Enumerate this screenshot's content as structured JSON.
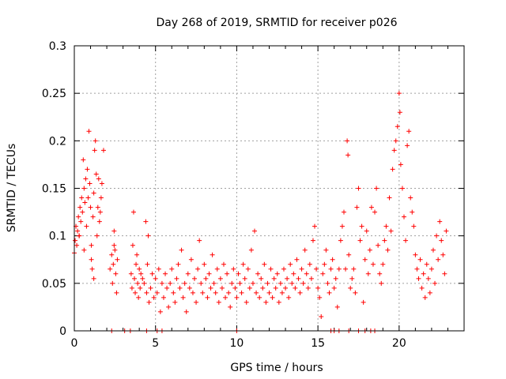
{
  "chart_data": {
    "type": "scatter",
    "title": "Day 268 of 2019, SRMTID for receiver p026",
    "xlabel": "GPS time / hours",
    "ylabel": "SRMTID / TECUs",
    "xlim": [
      0,
      24
    ],
    "ylim": [
      0,
      0.3
    ],
    "xticks": [
      0,
      5,
      10,
      15,
      20
    ],
    "xtick_labels": [
      "0",
      "5",
      "10",
      "15",
      "20"
    ],
    "yticks": [
      0,
      0.05,
      0.1,
      0.15,
      0.2,
      0.25,
      0.3
    ],
    "ytick_labels": [
      "0",
      "0.05",
      "0.1",
      "0.15",
      "0.2",
      "0.25",
      "0.3"
    ],
    "grid": true,
    "marker": "plus",
    "series_color": "#ff0000",
    "series": [
      {
        "name": "SRMTID",
        "points": [
          [
            0.0,
            0.082
          ],
          [
            0.05,
            0.095
          ],
          [
            0.1,
            0.11
          ],
          [
            0.15,
            0.09
          ],
          [
            0.2,
            0.105
          ],
          [
            0.25,
            0.12
          ],
          [
            0.3,
            0.1
          ],
          [
            0.35,
            0.13
          ],
          [
            0.4,
            0.115
          ],
          [
            0.45,
            0.14
          ],
          [
            0.5,
            0.125
          ],
          [
            0.55,
            0.18
          ],
          [
            0.6,
            0.15
          ],
          [
            0.65,
            0.135
          ],
          [
            0.7,
            0.16
          ],
          [
            0.75,
            0.11
          ],
          [
            0.8,
            0.17
          ],
          [
            0.85,
            0.14
          ],
          [
            0.9,
            0.21
          ],
          [
            0.95,
            0.155
          ],
          [
            1.0,
            0.13
          ],
          [
            1.05,
            0.09
          ],
          [
            1.1,
            0.065
          ],
          [
            1.15,
            0.12
          ],
          [
            1.2,
            0.145
          ],
          [
            1.25,
            0.19
          ],
          [
            1.3,
            0.2
          ],
          [
            1.35,
            0.165
          ],
          [
            1.4,
            0.1
          ],
          [
            1.45,
            0.13
          ],
          [
            1.5,
            0.16
          ],
          [
            1.55,
            0.115
          ],
          [
            1.6,
            0.125
          ],
          [
            1.65,
            0.14
          ],
          [
            1.7,
            0.155
          ],
          [
            1.8,
            0.19
          ],
          [
            1.05,
            0.075
          ],
          [
            0.6,
            0.085
          ],
          [
            0.3,
            0.1
          ],
          [
            1.2,
            0.055
          ],
          [
            2.2,
            0.065
          ],
          [
            2.3,
            0.08
          ],
          [
            2.35,
            0.05
          ],
          [
            2.4,
            0.07
          ],
          [
            2.45,
            0.105
          ],
          [
            2.5,
            0.085
          ],
          [
            2.55,
            0.06
          ],
          [
            2.6,
            0.04
          ],
          [
            2.65,
            0.075
          ],
          [
            2.45,
            0.09
          ],
          [
            3.5,
            0.06
          ],
          [
            3.55,
            0.045
          ],
          [
            3.6,
            0.09
          ],
          [
            3.65,
            0.125
          ],
          [
            3.7,
            0.055
          ],
          [
            3.75,
            0.04
          ],
          [
            3.8,
            0.07
          ],
          [
            3.85,
            0.08
          ],
          [
            3.9,
            0.05
          ],
          [
            3.95,
            0.035
          ],
          [
            4.0,
            0.065
          ],
          [
            4.05,
            0.045
          ],
          [
            4.1,
            0.06
          ],
          [
            4.2,
            0.055
          ],
          [
            4.3,
            0.05
          ],
          [
            4.4,
            0.115
          ],
          [
            4.45,
            0.04
          ],
          [
            4.5,
            0.07
          ],
          [
            4.55,
            0.1
          ],
          [
            4.6,
            0.03
          ],
          [
            4.7,
            0.045
          ],
          [
            4.8,
            0.06
          ],
          [
            4.9,
            0.035
          ],
          [
            5.0,
            0.055
          ],
          [
            5.1,
            0.04
          ],
          [
            5.2,
            0.065
          ],
          [
            5.3,
            0.02
          ],
          [
            5.4,
            0.05
          ],
          [
            5.5,
            0.035
          ],
          [
            5.6,
            0.06
          ],
          [
            5.7,
            0.045
          ],
          [
            5.8,
            0.025
          ],
          [
            5.9,
            0.05
          ],
          [
            6.0,
            0.065
          ],
          [
            6.1,
            0.04
          ],
          [
            6.2,
            0.03
          ],
          [
            6.3,
            0.055
          ],
          [
            6.4,
            0.07
          ],
          [
            6.5,
            0.045
          ],
          [
            6.6,
            0.085
          ],
          [
            6.7,
            0.035
          ],
          [
            6.8,
            0.05
          ],
          [
            6.9,
            0.02
          ],
          [
            7.0,
            0.06
          ],
          [
            7.1,
            0.045
          ],
          [
            7.2,
            0.075
          ],
          [
            7.3,
            0.04
          ],
          [
            7.4,
            0.055
          ],
          [
            7.5,
            0.03
          ],
          [
            7.6,
            0.065
          ],
          [
            7.7,
            0.095
          ],
          [
            7.8,
            0.05
          ],
          [
            7.9,
            0.04
          ],
          [
            8.0,
            0.07
          ],
          [
            8.1,
            0.055
          ],
          [
            8.2,
            0.035
          ],
          [
            8.3,
            0.06
          ],
          [
            8.4,
            0.045
          ],
          [
            8.5,
            0.08
          ],
          [
            8.6,
            0.05
          ],
          [
            8.7,
            0.04
          ],
          [
            8.8,
            0.065
          ],
          [
            8.9,
            0.03
          ],
          [
            9.0,
            0.055
          ],
          [
            9.1,
            0.045
          ],
          [
            9.2,
            0.07
          ],
          [
            9.3,
            0.035
          ],
          [
            9.4,
            0.06
          ],
          [
            9.5,
            0.04
          ],
          [
            9.6,
            0.025
          ],
          [
            9.7,
            0.05
          ],
          [
            9.8,
            0.065
          ],
          [
            9.9,
            0.045
          ],
          [
            10.0,
            0.035
          ],
          [
            10.1,
            0.06
          ],
          [
            10.2,
            0.05
          ],
          [
            10.3,
            0.04
          ],
          [
            10.4,
            0.07
          ],
          [
            10.5,
            0.055
          ],
          [
            10.6,
            0.03
          ],
          [
            10.7,
            0.065
          ],
          [
            10.8,
            0.045
          ],
          [
            10.9,
            0.085
          ],
          [
            11.0,
            0.05
          ],
          [
            11.1,
            0.105
          ],
          [
            11.2,
            0.04
          ],
          [
            11.3,
            0.06
          ],
          [
            11.4,
            0.035
          ],
          [
            11.5,
            0.055
          ],
          [
            11.6,
            0.045
          ],
          [
            11.7,
            0.07
          ],
          [
            11.8,
            0.03
          ],
          [
            11.9,
            0.05
          ],
          [
            12.0,
            0.04
          ],
          [
            12.1,
            0.065
          ],
          [
            12.2,
            0.035
          ],
          [
            12.3,
            0.055
          ],
          [
            12.4,
            0.045
          ],
          [
            12.5,
            0.06
          ],
          [
            12.6,
            0.03
          ],
          [
            12.7,
            0.05
          ],
          [
            12.8,
            0.04
          ],
          [
            12.9,
            0.065
          ],
          [
            13.0,
            0.045
          ],
          [
            13.1,
            0.055
          ],
          [
            13.2,
            0.035
          ],
          [
            13.3,
            0.07
          ],
          [
            13.4,
            0.05
          ],
          [
            13.5,
            0.06
          ],
          [
            13.6,
            0.045
          ],
          [
            13.7,
            0.075
          ],
          [
            13.8,
            0.055
          ],
          [
            13.9,
            0.04
          ],
          [
            14.0,
            0.065
          ],
          [
            14.1,
            0.05
          ],
          [
            14.2,
            0.085
          ],
          [
            14.3,
            0.06
          ],
          [
            14.4,
            0.045
          ],
          [
            14.5,
            0.07
          ],
          [
            14.6,
            0.055
          ],
          [
            14.7,
            0.095
          ],
          [
            14.8,
            0.11
          ],
          [
            14.9,
            0.065
          ],
          [
            15.0,
            0.045
          ],
          [
            15.1,
            0.035
          ],
          [
            15.2,
            0.015
          ],
          [
            15.3,
            0.06
          ],
          [
            15.4,
            0.07
          ],
          [
            15.5,
            0.085
          ],
          [
            15.6,
            0.05
          ],
          [
            15.7,
            0.04
          ],
          [
            15.8,
            0.065
          ],
          [
            15.9,
            0.075
          ],
          [
            16.0,
            0.045
          ],
          [
            16.1,
            0.055
          ],
          [
            16.2,
            0.025
          ],
          [
            16.3,
            0.065
          ],
          [
            16.4,
            0.095
          ],
          [
            16.5,
            0.11
          ],
          [
            16.6,
            0.125
          ],
          [
            16.7,
            0.065
          ],
          [
            16.8,
            0.2
          ],
          [
            16.85,
            0.185
          ],
          [
            16.9,
            0.08
          ],
          [
            17.0,
            0.045
          ],
          [
            17.1,
            0.055
          ],
          [
            17.2,
            0.065
          ],
          [
            17.3,
            0.04
          ],
          [
            17.4,
            0.13
          ],
          [
            17.5,
            0.15
          ],
          [
            17.6,
            0.095
          ],
          [
            17.7,
            0.11
          ],
          [
            17.8,
            0.03
          ],
          [
            17.9,
            0.075
          ],
          [
            18.0,
            0.105
          ],
          [
            18.1,
            0.06
          ],
          [
            18.2,
            0.085
          ],
          [
            18.3,
            0.13
          ],
          [
            18.4,
            0.07
          ],
          [
            18.5,
            0.125
          ],
          [
            18.6,
            0.15
          ],
          [
            18.7,
            0.09
          ],
          [
            18.8,
            0.06
          ],
          [
            18.9,
            0.05
          ],
          [
            19.0,
            0.07
          ],
          [
            19.1,
            0.095
          ],
          [
            19.2,
            0.11
          ],
          [
            19.3,
            0.085
          ],
          [
            19.4,
            0.14
          ],
          [
            19.5,
            0.105
          ],
          [
            19.6,
            0.17
          ],
          [
            19.7,
            0.19
          ],
          [
            19.8,
            0.2
          ],
          [
            19.9,
            0.215
          ],
          [
            20.0,
            0.25
          ],
          [
            20.05,
            0.23
          ],
          [
            20.1,
            0.175
          ],
          [
            20.2,
            0.15
          ],
          [
            20.3,
            0.12
          ],
          [
            20.4,
            0.095
          ],
          [
            20.5,
            0.195
          ],
          [
            20.6,
            0.21
          ],
          [
            20.7,
            0.14
          ],
          [
            20.8,
            0.125
          ],
          [
            20.9,
            0.11
          ],
          [
            21.0,
            0.08
          ],
          [
            21.1,
            0.065
          ],
          [
            21.2,
            0.055
          ],
          [
            21.3,
            0.075
          ],
          [
            21.4,
            0.045
          ],
          [
            21.5,
            0.06
          ],
          [
            21.6,
            0.035
          ],
          [
            21.7,
            0.07
          ],
          [
            21.8,
            0.055
          ],
          [
            21.9,
            0.04
          ],
          [
            22.0,
            0.065
          ],
          [
            22.1,
            0.085
          ],
          [
            22.2,
            0.05
          ],
          [
            22.3,
            0.1
          ],
          [
            22.4,
            0.075
          ],
          [
            22.5,
            0.115
          ],
          [
            22.6,
            0.095
          ],
          [
            22.7,
            0.08
          ],
          [
            22.8,
            0.06
          ],
          [
            22.9,
            0.105
          ],
          [
            2.3,
            0
          ],
          [
            3.1,
            0
          ],
          [
            3.45,
            0
          ],
          [
            4.45,
            0
          ],
          [
            5.1,
            0
          ],
          [
            5.4,
            0
          ],
          [
            10.0,
            0
          ],
          [
            15.8,
            0
          ],
          [
            16.0,
            0
          ],
          [
            16.3,
            0
          ],
          [
            16.9,
            0
          ],
          [
            17.5,
            0
          ],
          [
            17.9,
            0
          ],
          [
            18.25,
            0
          ],
          [
            18.5,
            0
          ]
        ]
      }
    ]
  }
}
